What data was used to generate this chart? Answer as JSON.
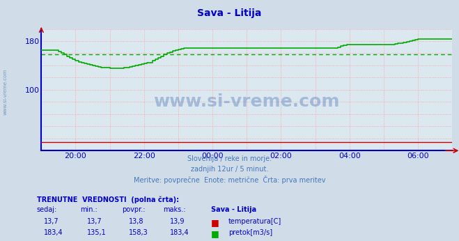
{
  "title": "Sava - Litija",
  "title_color": "#0000cc",
  "bg_color": "#d0dce8",
  "plot_bg_color": "#dce8f0",
  "axis_color": "#0000cc",
  "grid_color": "#ff9999",
  "watermark_text": "www.si-vreme.com",
  "watermark_color": "#2255aa",
  "watermark_alpha": 0.3,
  "subtitle_lines": [
    "Slovenija / reke in morje.",
    "zadnjih 12ur / 5 minut.",
    "Meritve: povprečne  Enote: metrične  Črta: prva meritev"
  ],
  "subtitle_color": "#4477bb",
  "xlim": [
    0,
    144
  ],
  "ylim": [
    0,
    200
  ],
  "temp_color": "#cc0000",
  "flow_color": "#00aa00",
  "flow_avg_y": 158.3,
  "temp_value": 13.7,
  "legend_entries": [
    {
      "label": "temperatura[C]",
      "color": "#cc0000"
    },
    {
      "label": "pretok[m3/s]",
      "color": "#00aa00"
    }
  ],
  "table_header": "TRENUTNE  VREDNOSTI  (polna črta):",
  "table_col_headers": [
    "sedaj:",
    "min.:",
    "povpr.:",
    "maks.:",
    "Sava - Litija"
  ],
  "table_row1": [
    "13,7",
    "13,7",
    "13,8",
    "13,9"
  ],
  "table_row2": [
    "183,4",
    "135,1",
    "158,3",
    "183,4"
  ],
  "left_label_color": "#4477aa",
  "flow_data_y": [
    165,
    165,
    165,
    165,
    165,
    165,
    163,
    161,
    158,
    155,
    153,
    150,
    148,
    146,
    144,
    143,
    142,
    141,
    140,
    139,
    138,
    137,
    136,
    136,
    135,
    135,
    135,
    135,
    135,
    136,
    137,
    138,
    139,
    140,
    141,
    142,
    143,
    144,
    145,
    148,
    150,
    153,
    155,
    158,
    160,
    162,
    164,
    165,
    166,
    167,
    168,
    168,
    168,
    168,
    168,
    168,
    168,
    168,
    168,
    168,
    168,
    168,
    168,
    168,
    168,
    168,
    168,
    168,
    168,
    168,
    168,
    168,
    168,
    168,
    168,
    168,
    168,
    168,
    168,
    168,
    168,
    168,
    168,
    168,
    168,
    168,
    168,
    168,
    168,
    168,
    168,
    168,
    168,
    168,
    168,
    168,
    168,
    168,
    168,
    168,
    168,
    168,
    168,
    168,
    170,
    172,
    173,
    174,
    174,
    174,
    174,
    174,
    174,
    174,
    174,
    174,
    174,
    174,
    174,
    174,
    174,
    174,
    174,
    174,
    175,
    176,
    177,
    178,
    179,
    180,
    181,
    182,
    183,
    183,
    183,
    183,
    183,
    183,
    183,
    183,
    183,
    183,
    183,
    183,
    183
  ]
}
